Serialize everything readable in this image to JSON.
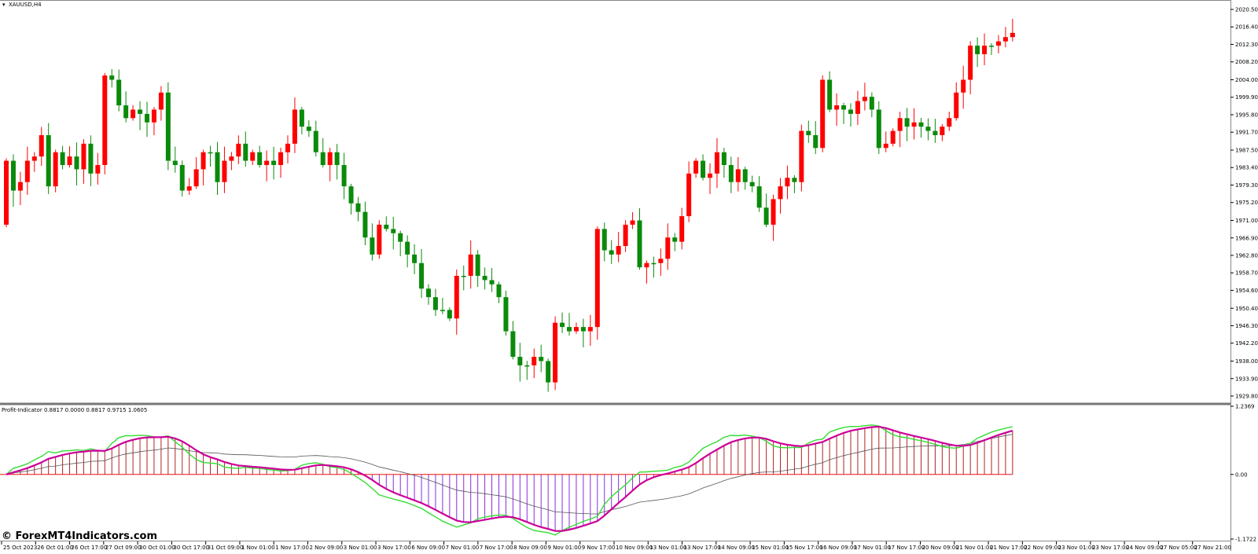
{
  "main_title": "XAUUSD,H4",
  "indicator_title": "Profit-Indicator 0.8817 0.0000 0.8817 0.9715 1.0605",
  "watermark": "© ForexMT4Indicators.com",
  "colors": {
    "bull": "#0a8a0a",
    "bear": "#ff0000",
    "hist_pos": "#b22222",
    "hist_neg": "#8a2be2",
    "magenta": "#cc0099",
    "green_line": "#33dd33",
    "red_line": "#ee1111",
    "slow": "#555555"
  },
  "chart_data": [
    {
      "type": "candlestick",
      "title": "XAUUSD,H4",
      "ylim": [
        1929.8,
        2020.5
      ],
      "y_ticks": [
        "2020.50",
        "2016.40",
        "2012.30",
        "2008.20",
        "2004.00",
        "1999.90",
        "1995.80",
        "1991.70",
        "1987.50",
        "1983.40",
        "1979.30",
        "1975.20",
        "1971.00",
        "1966.90",
        "1962.80",
        "1958.70",
        "1954.60",
        "1950.40",
        "1946.30",
        "1942.20",
        "1938.00",
        "1933.90",
        "1929.80"
      ],
      "x_ticks": [
        "25 Oct 2023",
        "26 Oct 01:00",
        "26 Oct 17:00",
        "27 Oct 09:00",
        "30 Oct 01:00",
        "30 Oct 17:00",
        "31 Oct 09:00",
        "1 Nov 01:00",
        "1 Nov 17:00",
        "2 Nov 09:00",
        "3 Nov 01:00",
        "3 Nov 17:00",
        "6 Nov 09:00",
        "7 Nov 01:00",
        "7 Nov 17:00",
        "8 Nov 09:00",
        "9 Nov 01:00",
        "9 Nov 17:00",
        "10 Nov 09:00",
        "13 Nov 01:00",
        "13 Nov 17:00",
        "14 Nov 09:00",
        "15 Nov 01:00",
        "15 Nov 17:00",
        "16 Nov 09:00",
        "17 Nov 01:00",
        "17 Nov 17:00",
        "20 Nov 09:00",
        "21 Nov 01:00",
        "21 Nov 17:00",
        "22 Nov 09:00",
        "23 Nov 01:00",
        "23 Nov 17:00",
        "24 Nov 09:00",
        "27 Nov 05:00",
        "27 Nov 21:00"
      ],
      "close": [
        1970,
        1985,
        1978,
        1980,
        1985,
        1986,
        1991,
        1979,
        1987,
        1984,
        1986,
        1983,
        1989,
        1982,
        1984,
        2005,
        2004,
        1998,
        1995,
        1997,
        1996,
        1994,
        1997,
        2001,
        1985,
        1984,
        1978,
        1979,
        1983,
        1987,
        1987,
        1980,
        1985,
        1986,
        1989,
        1985,
        1987,
        1984,
        1985,
        1984,
        1987,
        1989,
        1997,
        1993,
        1992,
        1987,
        1984,
        1987,
        1984,
        1979,
        1975,
        1973,
        1967,
        1963,
        1970,
        1969,
        1968,
        1966,
        1963,
        1961,
        1955,
        1953,
        1950,
        1950,
        1948,
        1958,
        1958,
        1963,
        1958,
        1957,
        1956,
        1953,
        1945,
        1939,
        1937,
        1937,
        1939,
        1938,
        1933,
        1947,
        1946,
        1945,
        1946,
        1945,
        1946,
        1969,
        1964,
        1963,
        1965,
        1970,
        1971,
        1960,
        1961,
        1961,
        1962,
        1967,
        1966,
        1972,
        1982,
        1985,
        1981,
        1982,
        1987,
        1984,
        1980,
        1983,
        1980,
        1979,
        1974,
        1970,
        1976,
        1979,
        1981,
        1980,
        1992,
        1991,
        1988,
        2004,
        1997,
        1998,
        1997,
        1996,
        1999,
        2000,
        1997,
        1988,
        1989,
        1992,
        1995,
        1993,
        1994,
        1993,
        1992,
        1991,
        1993,
        1995,
        2001,
        2004,
        2012,
        2010,
        2012,
        2012,
        2013,
        2014
      ],
      "open": [
        1985,
        1978,
        1980,
        1985,
        1986,
        1991,
        1979,
        1987,
        1984,
        1986,
        1983,
        1989,
        1982,
        1984,
        2005,
        2004,
        1998,
        1995,
        1997,
        1996,
        1994,
        1997,
        2001,
        1985,
        1984,
        1978,
        1979,
        1983,
        1987,
        1987,
        1980,
        1985,
        1986,
        1989,
        1985,
        1987,
        1984,
        1985,
        1984,
        1987,
        1989,
        1997,
        1993,
        1992,
        1987,
        1984,
        1987,
        1984,
        1979,
        1975,
        1973,
        1967,
        1963,
        1970,
        1969,
        1968,
        1966,
        1963,
        1961,
        1955,
        1953,
        1950,
        1950,
        1948,
        1958,
        1958,
        1963,
        1958,
        1957,
        1956,
        1953,
        1945,
        1939,
        1937,
        1937,
        1939,
        1938,
        1933,
        1947,
        1946,
        1945,
        1946,
        1945,
        1946,
        1969,
        1964,
        1963,
        1965,
        1970,
        1971,
        1960,
        1961,
        1961,
        1962,
        1967,
        1966,
        1972,
        1982,
        1985,
        1981,
        1982,
        1987,
        1984,
        1980,
        1983,
        1980,
        1979,
        1974,
        1970,
        1976,
        1979,
        1981,
        1980,
        1992,
        1991,
        1988,
        2004,
        1997,
        1998,
        1997,
        1996,
        1999,
        2000,
        1997,
        1988,
        1989,
        1992,
        1995,
        1993,
        1994,
        1993,
        1992,
        1991,
        1993,
        1995,
        2001,
        2004,
        2012,
        2010,
        2012,
        2012,
        2013,
        2014,
        2015
      ],
      "indicator": {
        "title": "Profit-Indicator",
        "values_printed": [
          0.8817,
          0.0,
          0.8817,
          0.9715,
          1.0605
        ],
        "ylim": [
          -1.1722,
          1.2369
        ],
        "y_ticks": [
          "1.2369",
          "0.00",
          "-1.1722"
        ]
      }
    }
  ]
}
